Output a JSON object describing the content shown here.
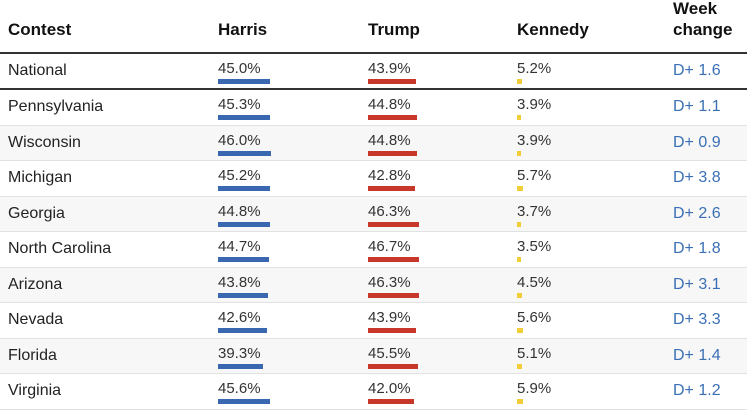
{
  "header": {
    "contest": "Contest",
    "harris": "Harris",
    "trump": "Trump",
    "kennedy": "Kennedy",
    "week_line1": "Week",
    "week_line2": "change"
  },
  "colors": {
    "harris": "#3a68b0",
    "trump": "#c8382a",
    "kennedy": "#f3cd38",
    "week_change": "#3a6fb5"
  },
  "rows": [
    {
      "contest": "National",
      "harris": "45.0%",
      "trump": "43.9%",
      "kennedy": "5.2%",
      "week": "D+ 1.6"
    },
    {
      "contest": "Pennsylvania",
      "harris": "45.3%",
      "trump": "44.8%",
      "kennedy": "3.9%",
      "week": "D+ 1.1"
    },
    {
      "contest": "Wisconsin",
      "harris": "46.0%",
      "trump": "44.8%",
      "kennedy": "3.9%",
      "week": "D+ 0.9"
    },
    {
      "contest": "Michigan",
      "harris": "45.2%",
      "trump": "42.8%",
      "kennedy": "5.7%",
      "week": "D+ 3.8"
    },
    {
      "contest": "Georgia",
      "harris": "44.8%",
      "trump": "46.3%",
      "kennedy": "3.7%",
      "week": "D+ 2.6"
    },
    {
      "contest": "North Carolina",
      "harris": "44.7%",
      "trump": "46.7%",
      "kennedy": "3.5%",
      "week": "D+ 1.8"
    },
    {
      "contest": "Arizona",
      "harris": "43.8%",
      "trump": "46.3%",
      "kennedy": "4.5%",
      "week": "D+ 3.1"
    },
    {
      "contest": "Nevada",
      "harris": "42.6%",
      "trump": "43.9%",
      "kennedy": "5.6%",
      "week": "D+ 3.3"
    },
    {
      "contest": "Florida",
      "harris": "39.3%",
      "trump": "45.5%",
      "kennedy": "5.1%",
      "week": "D+ 1.4"
    },
    {
      "contest": "Virginia",
      "harris": "45.6%",
      "trump": "42.0%",
      "kennedy": "5.9%",
      "week": "D+ 1.2"
    }
  ]
}
